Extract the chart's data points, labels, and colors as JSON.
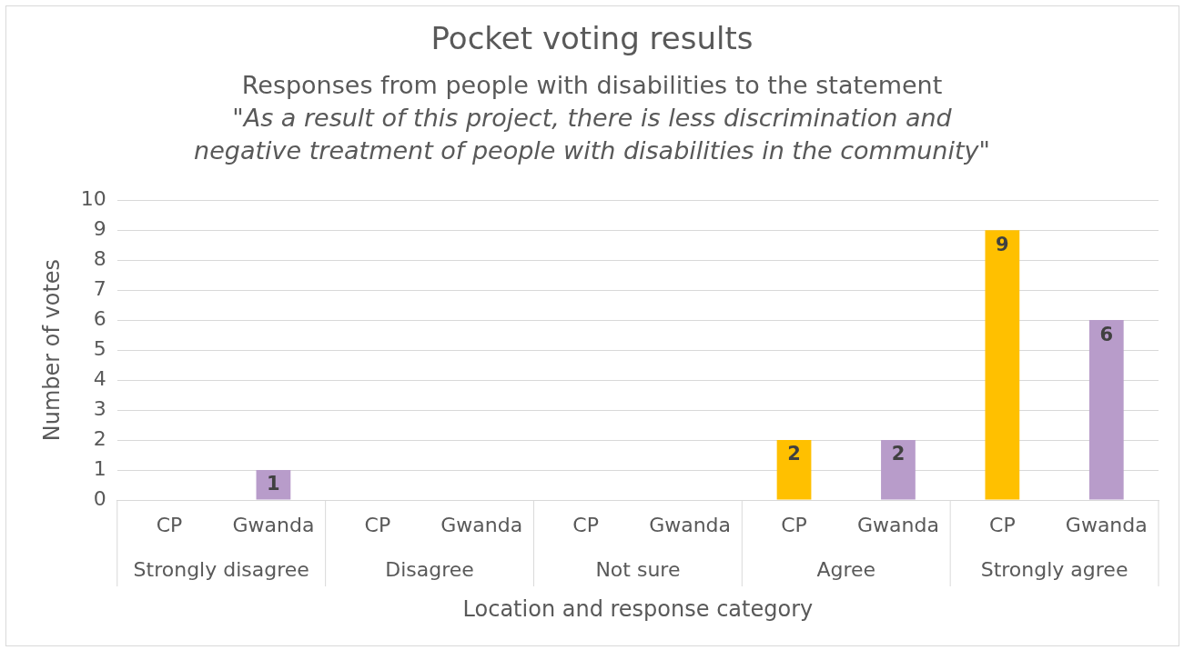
{
  "chart_data": {
    "type": "bar",
    "title": "Pocket voting results",
    "subtitle": "Responses from people with disabilities to the statement\n\"As a result of this project, there is less discrimination and negative treatment of people with disabilities in the community\"",
    "categories": [
      "CP",
      "Gwanda",
      "CP",
      "Gwanda",
      "CP",
      "Gwanda",
      "CP",
      "Gwanda",
      "CP",
      "Gwanda"
    ],
    "values": [
      0,
      1,
      0,
      0,
      0,
      0,
      2,
      2,
      9,
      6
    ],
    "colors": [
      "#ffc000",
      "#b89cca",
      "#ffc000",
      "#b89cca",
      "#ffc000",
      "#b89cca",
      "#ffc000",
      "#b89cca",
      "#ffc000",
      "#b89cca"
    ],
    "value_labels": [
      null,
      "1",
      null,
      null,
      null,
      null,
      "2",
      "2",
      "9",
      "6"
    ],
    "annotations": [
      "Strongly disagree",
      "Disagree",
      "Not sure",
      "Agree",
      "Strongly agree"
    ],
    "xlabel": "Location and response category",
    "ylabel": "Number of votes",
    "ylim": [
      0,
      10
    ],
    "yticks": [
      0,
      1,
      2,
      3,
      4,
      5,
      6,
      7,
      8,
      9,
      10
    ],
    "grid": "y",
    "legend": false
  }
}
